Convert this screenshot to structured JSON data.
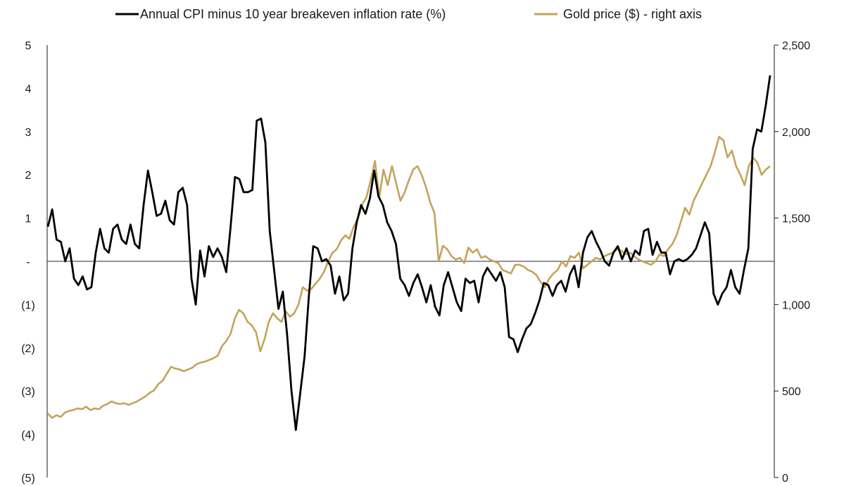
{
  "chart_data": {
    "type": "line",
    "legend_position": "top",
    "grid": false,
    "left_axis": {
      "range": [
        -5,
        5
      ],
      "tick_values": [
        5,
        4,
        3,
        2,
        1,
        0,
        -1,
        -2,
        -3,
        -4,
        -5
      ],
      "tick_labels": [
        "5",
        "4",
        "3",
        "2",
        "1",
        "-",
        "(1)",
        "(2)",
        "(3)",
        "(4)",
        "(5)"
      ]
    },
    "right_axis": {
      "range": [
        0,
        2500
      ],
      "tick_values": [
        2500,
        2000,
        1500,
        1000,
        500,
        0
      ],
      "tick_labels": [
        "2,500",
        "2,000",
        "1,500",
        "1,000",
        "500",
        "0"
      ]
    },
    "series": [
      {
        "name": "Annual CPI minus 10 year breakeven inflation rate (%)",
        "axis": "left",
        "color": "#000000",
        "values": [
          0.8,
          1.2,
          0.5,
          0.45,
          0.0,
          0.3,
          -0.4,
          -0.55,
          -0.35,
          -0.65,
          -0.6,
          0.2,
          0.75,
          0.3,
          0.2,
          0.75,
          0.85,
          0.5,
          0.4,
          0.85,
          0.4,
          0.3,
          1.3,
          2.1,
          1.6,
          1.05,
          1.1,
          1.4,
          0.95,
          0.85,
          1.6,
          1.7,
          1.3,
          -0.4,
          -1.0,
          0.25,
          -0.35,
          0.35,
          0.1,
          0.3,
          0.1,
          -0.25,
          0.8,
          1.95,
          1.9,
          1.6,
          1.6,
          1.65,
          3.25,
          3.3,
          2.75,
          0.7,
          -0.2,
          -1.1,
          -0.7,
          -1.7,
          -3.0,
          -3.9,
          -3.05,
          -2.2,
          -0.8,
          0.35,
          0.3,
          0.0,
          0.05,
          -0.1,
          -0.75,
          -0.35,
          -0.9,
          -0.75,
          0.3,
          0.9,
          1.3,
          1.1,
          1.45,
          2.1,
          1.5,
          1.3,
          0.9,
          0.7,
          0.4,
          -0.4,
          -0.55,
          -0.8,
          -0.5,
          -0.3,
          -0.6,
          -0.95,
          -0.55,
          -1.05,
          -1.25,
          -0.55,
          -0.25,
          -0.6,
          -0.95,
          -1.15,
          -0.4,
          -0.5,
          -0.45,
          -0.95,
          -0.35,
          -0.15,
          -0.3,
          -0.45,
          -0.25,
          -0.6,
          -1.75,
          -1.8,
          -2.1,
          -1.8,
          -1.55,
          -1.45,
          -1.2,
          -0.9,
          -0.5,
          -0.55,
          -0.8,
          -0.55,
          -0.45,
          -0.7,
          -0.3,
          -0.1,
          -0.6,
          0.2,
          0.55,
          0.7,
          0.45,
          0.25,
          0.0,
          -0.1,
          0.2,
          0.35,
          0.05,
          0.3,
          0.0,
          0.25,
          0.15,
          0.7,
          0.75,
          0.15,
          0.45,
          0.2,
          0.2,
          -0.3,
          0.0,
          0.05,
          0.0,
          0.05,
          0.15,
          0.3,
          0.6,
          0.9,
          0.65,
          -0.75,
          -1.0,
          -0.75,
          -0.6,
          -0.2,
          -0.6,
          -0.75,
          -0.2,
          0.3,
          2.6,
          3.05,
          3.0,
          3.6,
          4.3
        ]
      },
      {
        "name": "Gold price ($) - right axis",
        "axis": "right",
        "color": "#c4a35a",
        "values": [
          370,
          345,
          360,
          350,
          375,
          385,
          390,
          400,
          395,
          410,
          390,
          400,
          395,
          415,
          425,
          440,
          430,
          425,
          430,
          420,
          430,
          440,
          455,
          470,
          490,
          505,
          540,
          560,
          600,
          640,
          630,
          625,
          615,
          625,
          635,
          655,
          665,
          670,
          680,
          690,
          705,
          760,
          790,
          830,
          920,
          970,
          950,
          900,
          880,
          840,
          730,
          800,
          900,
          950,
          920,
          900,
          960,
          930,
          950,
          1000,
          1100,
          1080,
          1090,
          1120,
          1150,
          1190,
          1250,
          1300,
          1320,
          1370,
          1400,
          1380,
          1450,
          1500,
          1580,
          1620,
          1720,
          1830,
          1620,
          1780,
          1690,
          1800,
          1700,
          1600,
          1650,
          1720,
          1780,
          1800,
          1750,
          1680,
          1590,
          1530,
          1250,
          1340,
          1320,
          1280,
          1260,
          1270,
          1240,
          1330,
          1300,
          1320,
          1270,
          1280,
          1260,
          1250,
          1240,
          1200,
          1190,
          1180,
          1230,
          1230,
          1220,
          1200,
          1190,
          1170,
          1130,
          1100,
          1150,
          1180,
          1200,
          1250,
          1220,
          1280,
          1270,
          1300,
          1210,
          1230,
          1250,
          1270,
          1260,
          1280,
          1290,
          1300,
          1320,
          1310,
          1290,
          1300,
          1280,
          1260,
          1250,
          1240,
          1230,
          1250,
          1290,
          1280,
          1320,
          1350,
          1400,
          1480,
          1560,
          1520,
          1600,
          1650,
          1700,
          1750,
          1800,
          1880,
          1970,
          1950,
          1850,
          1890,
          1800,
          1750,
          1690,
          1800,
          1850,
          1820,
          1750,
          1780,
          1800
        ]
      }
    ]
  }
}
